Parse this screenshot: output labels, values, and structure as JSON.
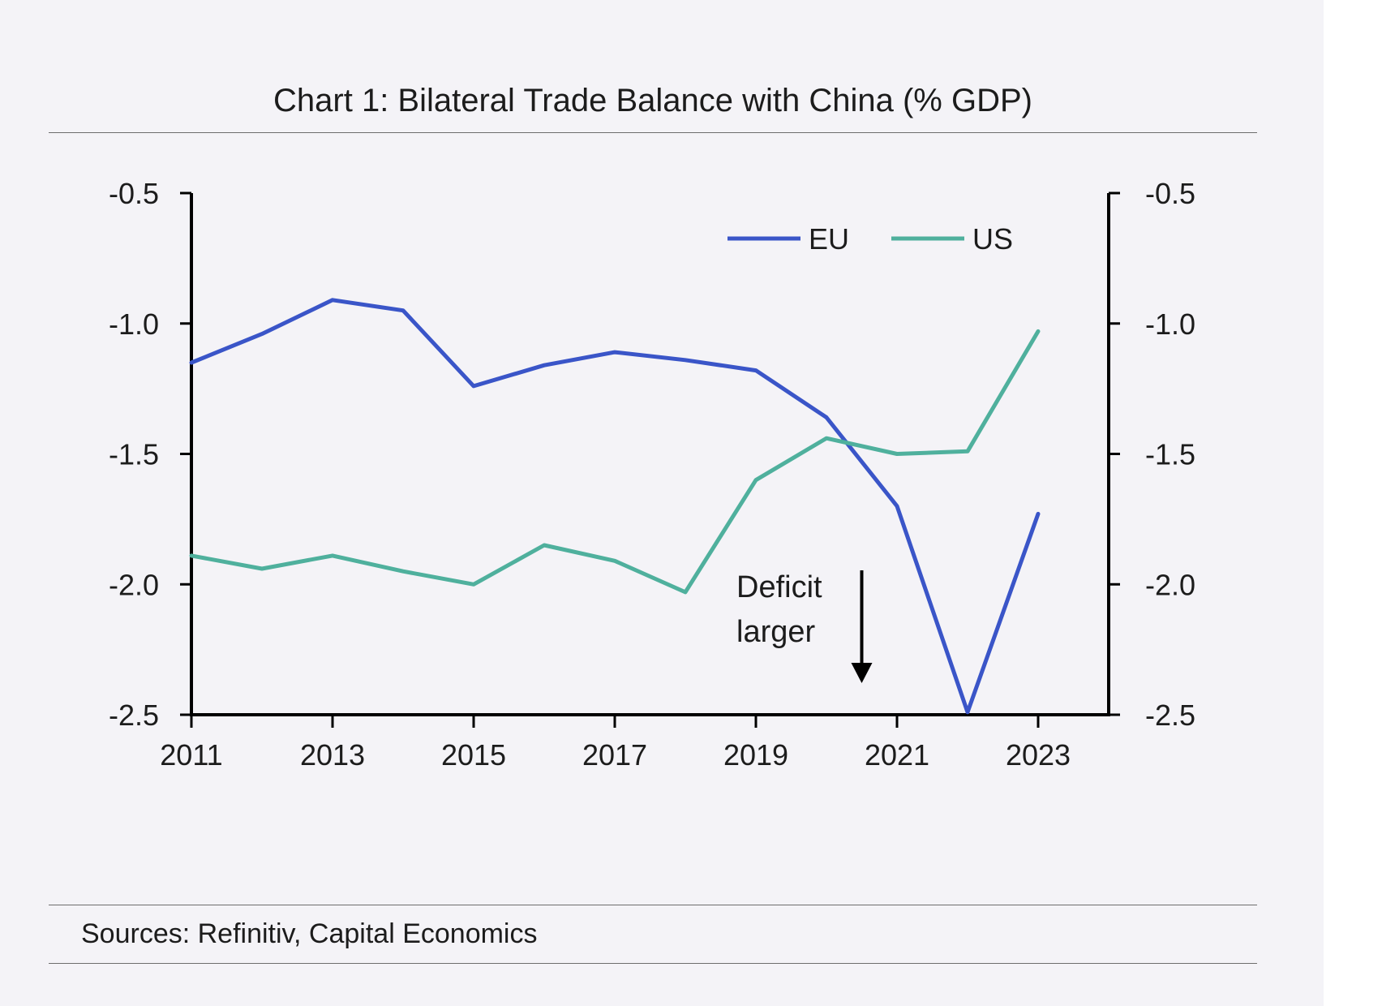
{
  "page": {
    "background": "#f4f3f7",
    "strip_color": "#ffffff"
  },
  "chart_data": {
    "type": "line",
    "title": "Chart 1: Bilateral Trade Balance with China (% GDP)",
    "xlabel": "",
    "ylabel": "",
    "x": [
      2011,
      2012,
      2013,
      2014,
      2015,
      2016,
      2017,
      2018,
      2019,
      2020,
      2021,
      2022,
      2023
    ],
    "xlim": [
      2011,
      2024
    ],
    "ylim": [
      -2.5,
      -0.5
    ],
    "x_ticks": [
      2011,
      2013,
      2015,
      2017,
      2019,
      2021,
      2023
    ],
    "x_tick_labels": [
      "2011",
      "2013",
      "2015",
      "2017",
      "2019",
      "2021",
      "2023"
    ],
    "y_ticks": [
      -0.5,
      -1.0,
      -1.5,
      -2.0,
      -2.5
    ],
    "y_tick_labels": [
      "-0.5",
      "-1.0",
      "-1.5",
      "-2.0",
      "-2.5"
    ],
    "y_right_tick_labels": [
      "-0.5",
      "-1.0",
      "-1.5",
      "-2.0",
      "-2.5"
    ],
    "grid": false,
    "legend_position": "top-right",
    "series": [
      {
        "name": "EU",
        "color": "#3a55c8",
        "values": [
          -1.15,
          -1.04,
          -0.91,
          -0.95,
          -1.24,
          -1.16,
          -1.11,
          -1.14,
          -1.18,
          -1.36,
          -1.7,
          -2.49,
          -1.73
        ]
      },
      {
        "name": "US",
        "color": "#4fb09d",
        "values": [
          -1.89,
          -1.94,
          -1.89,
          -1.95,
          -2.0,
          -1.85,
          -1.91,
          -2.03,
          -1.6,
          -1.44,
          -1.5,
          -1.49,
          -1.03
        ]
      }
    ],
    "annotation": {
      "lines": [
        "Deficit",
        "larger"
      ],
      "x": 2020.5
    }
  },
  "footer": {
    "source": "Sources: Refinitiv, Capital Economics"
  }
}
